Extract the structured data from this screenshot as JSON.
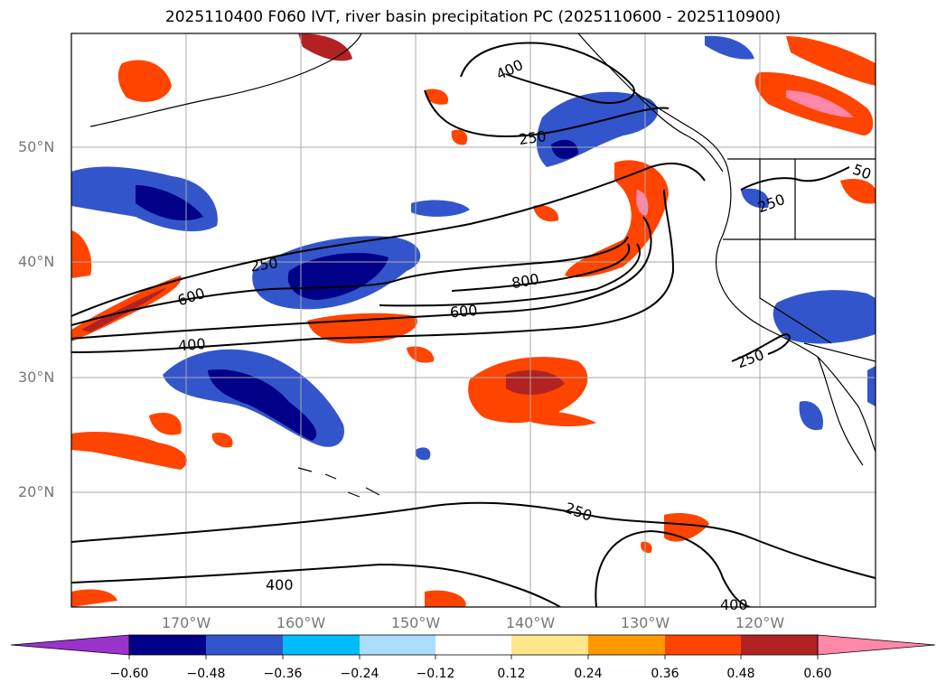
{
  "title": "2025110400 F060 IVT, river basin precipitation PC (2025110600 - 2025110900)",
  "map": {
    "lat_labels": [
      "50°N",
      "40°N",
      "30°N",
      "20°N"
    ],
    "lon_labels": [
      "170°W",
      "160°W",
      "150°W",
      "140°W",
      "130°W",
      "120°W"
    ],
    "contour_labels": [
      "400",
      "250",
      "250",
      "600",
      "400",
      "600",
      "800",
      "250",
      "250",
      "50",
      "250",
      "400",
      "400"
    ]
  },
  "colorbar": {
    "ticks": [
      "−0.60",
      "−0.48",
      "−0.36",
      "−0.24",
      "−0.12",
      "0.12",
      "0.24",
      "0.36",
      "0.48",
      "0.60"
    ],
    "colors": [
      "#9933cc",
      "#000088",
      "#3355cc",
      "#00bbff",
      "#aaddff",
      "#ffffff",
      "#ffe68a",
      "#ff9900",
      "#ff4400",
      "#b22222",
      "#ff88aa",
      "#ff88aa"
    ]
  },
  "legend_colors": {
    "ivt_contour": "#000000",
    "grid": "#aaaaaa",
    "coast": "#000000"
  }
}
